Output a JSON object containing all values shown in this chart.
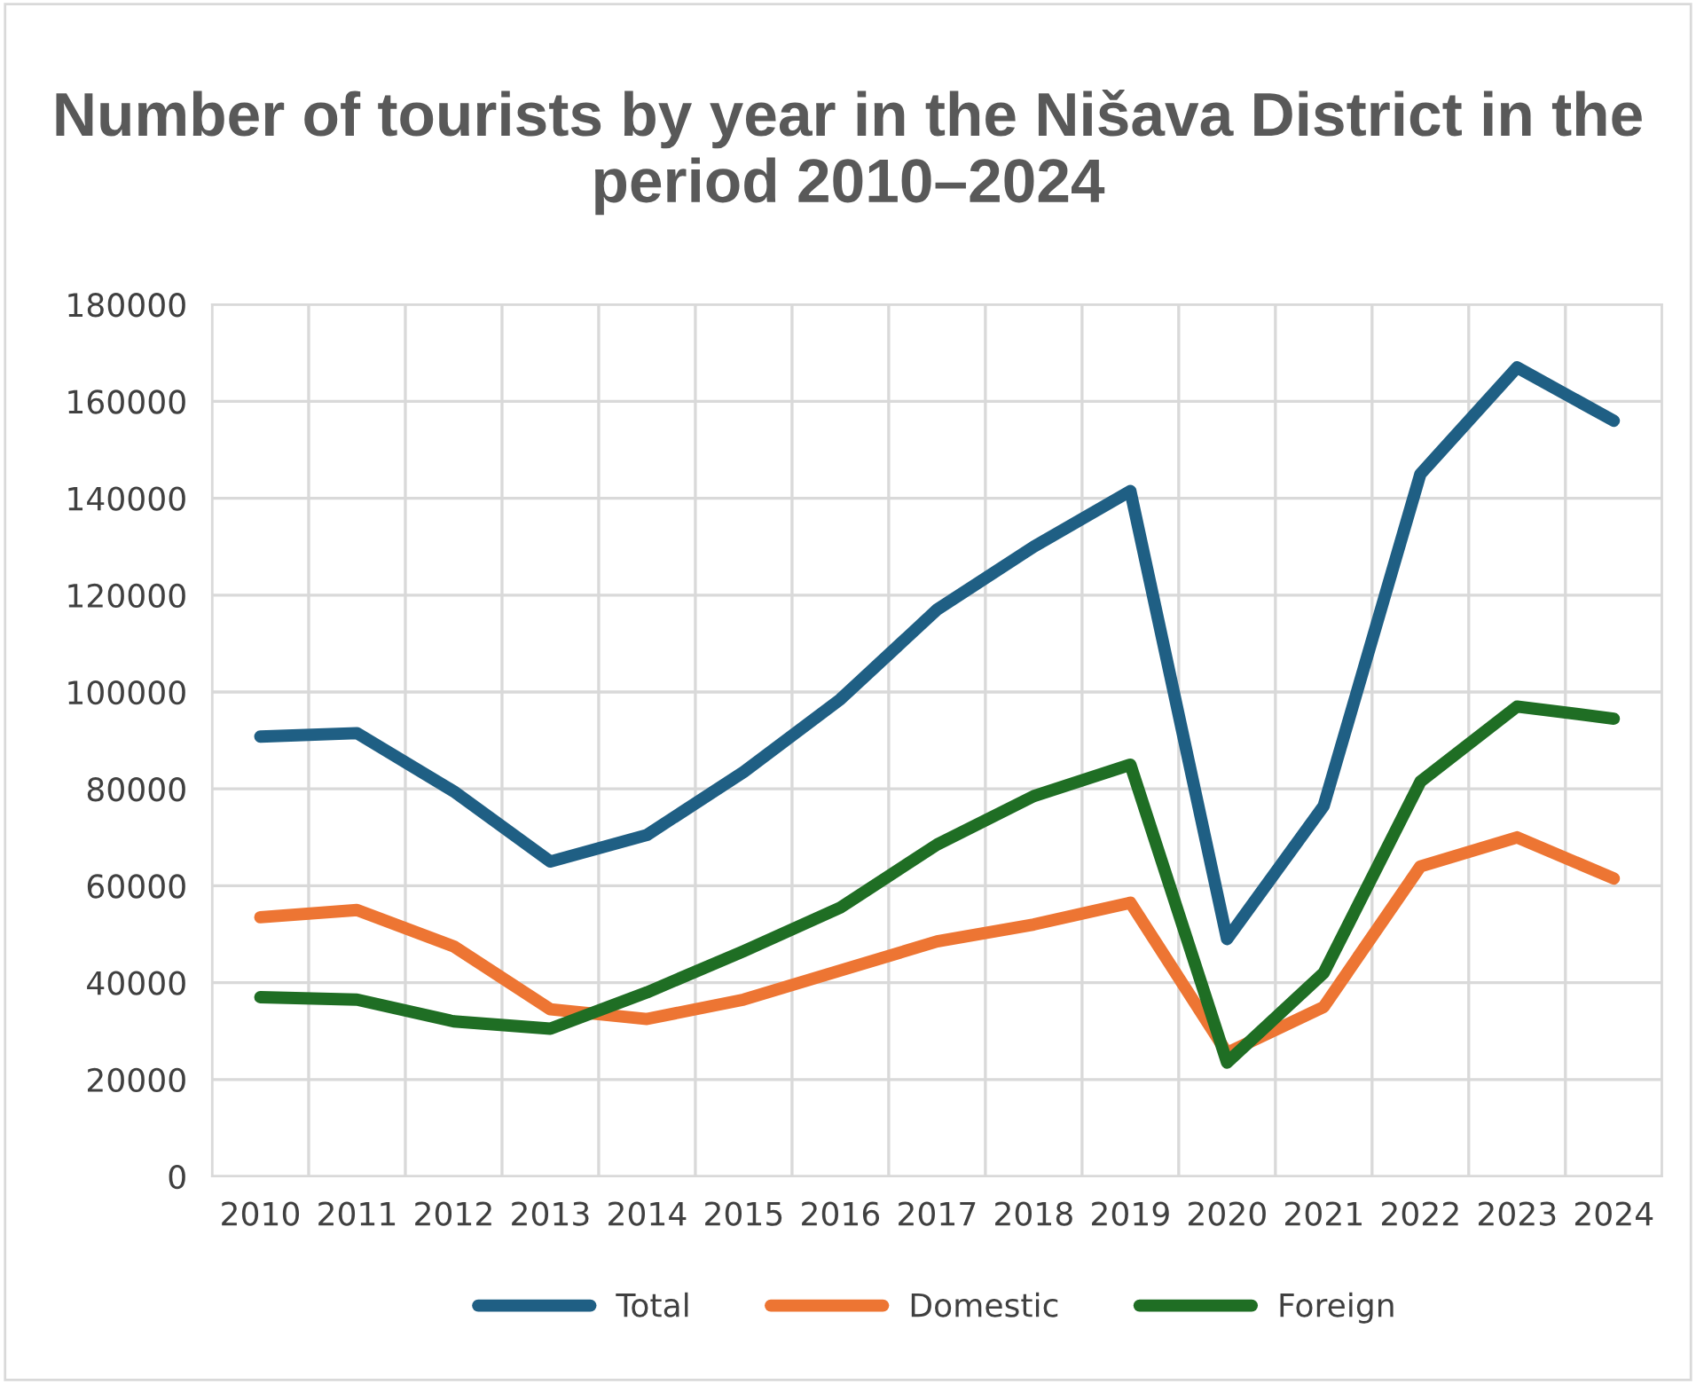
{
  "chart_data": {
    "type": "line",
    "title": "Number of tourists by year in the Nišava District in the period 2010–2024",
    "categories": [
      "2010",
      "2011",
      "2012",
      "2013",
      "2014",
      "2015",
      "2016",
      "2017",
      "2018",
      "2019",
      "2020",
      "2021",
      "2022",
      "2023",
      "2024"
    ],
    "series": [
      {
        "name": "Total",
        "color": "#1f5f84",
        "values": [
          90800,
          91500,
          79500,
          65000,
          70500,
          83500,
          98500,
          117000,
          130000,
          141500,
          49000,
          76500,
          145000,
          167000,
          156000
        ]
      },
      {
        "name": "Domestic",
        "color": "#ed7533",
        "values": [
          53500,
          55000,
          47500,
          34500,
          32500,
          36500,
          42500,
          48500,
          52000,
          56500,
          25500,
          35000,
          64000,
          70000,
          61500
        ]
      },
      {
        "name": "Foreign",
        "color": "#1f6e24",
        "values": [
          37000,
          36500,
          32000,
          30500,
          38000,
          46500,
          55500,
          68500,
          78500,
          85000,
          23500,
          42000,
          81500,
          97000,
          94500
        ]
      }
    ],
    "ylim": [
      0,
      180000
    ],
    "yticks": [
      0,
      20000,
      40000,
      60000,
      80000,
      100000,
      120000,
      140000,
      160000,
      180000
    ],
    "grid": true,
    "legend": "bottom",
    "marker": "none",
    "line_style": "solid"
  }
}
